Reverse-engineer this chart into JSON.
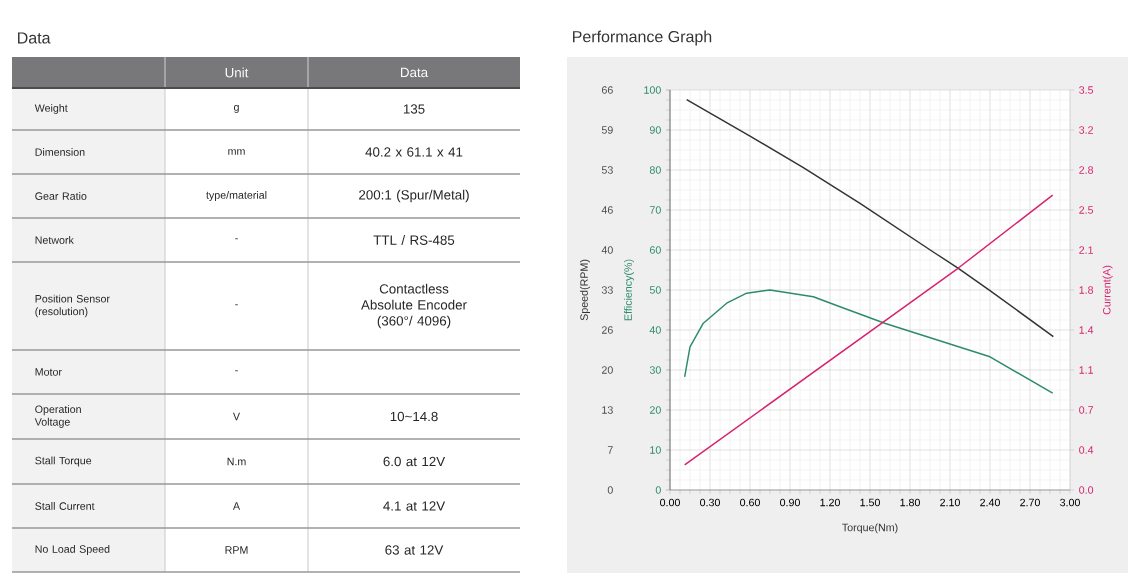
{
  "chart_data": [
    {
      "type": "other",
      "title": "Data",
      "categories": [
        null,
        "Unit",
        "Data"
      ],
      "y_categories": [
        "Weight",
        "Dimension",
        "Gear Ratio",
        "Network",
        "Position Sensor (resolution)",
        "Motor",
        "Operation Voltage",
        "Stall Torque",
        "Stall Current",
        "No Load Speed"
      ],
      "cell_labels": [
        [
          "g",
          "135"
        ],
        [
          "mm",
          "40.2 x 61.1 x 41"
        ],
        [
          "type/material",
          "200:1 (Spur/Metal)"
        ],
        [
          "-",
          "TTL / RS-485"
        ],
        [
          "-",
          "Contactless Absolute Encoder (360°/ 4096)"
        ],
        [
          "-",
          null
        ],
        [
          "V",
          "10~14.8"
        ],
        [
          "N.m",
          "6.0 at 12V"
        ],
        [
          "A",
          "4.1 at 12V"
        ],
        [
          "RPM",
          "63 at 12V"
        ]
      ]
    },
    {
      "type": "line",
      "title": "Performance Graph",
      "xlabel": "Torque(Nm)",
      "ylabel": "Speed(RPM)",
      "y2label": "Current(A)",
      "y3label": "Efficiency(%)",
      "xlim": [
        0,
        3
      ],
      "xticks": [
        {
          "value": 0,
          "label": "0.00"
        },
        {
          "value": 0.3,
          "label": "0.30"
        },
        {
          "value": 0.6,
          "label": "0.60"
        },
        {
          "value": 0.9,
          "label": "0.90"
        },
        {
          "value": 1.2,
          "label": "1.20"
        },
        {
          "value": 1.5,
          "label": "1.50"
        },
        {
          "value": 1.8,
          "label": "1.80"
        },
        {
          "value": 2.1,
          "label": "2.10"
        },
        {
          "value": 2.4,
          "label": "2.40"
        },
        {
          "value": 2.7,
          "label": "2.70"
        },
        {
          "value": 3,
          "label": "3.00"
        }
      ],
      "ylim": [
        0,
        66
      ],
      "yticks": [
        0,
        {
          "value": 6.6,
          "label": "7"
        },
        {
          "value": 13.2,
          "label": "13"
        },
        {
          "value": 19.8,
          "label": "20"
        },
        {
          "value": 26.4,
          "label": "26"
        },
        33,
        {
          "value": 39.6,
          "label": "40"
        },
        {
          "value": 46.2,
          "label": "46"
        },
        {
          "value": 52.8,
          "label": "53"
        },
        {
          "value": 59.4,
          "label": "59"
        },
        66
      ],
      "y2lim": [
        0,
        3.5
      ],
      "y2ticks": [
        {
          "value": 0,
          "label": "0.0"
        },
        {
          "value": 0.35,
          "label": "0.4"
        },
        0.7,
        {
          "value": 1.05,
          "label": "1.1"
        },
        1.4,
        {
          "value": 1.75,
          "label": "1.8"
        },
        2.1,
        {
          "value": 2.45,
          "label": "2.5"
        },
        2.8,
        {
          "value": 3.15,
          "label": "3.2"
        },
        3.5
      ],
      "y3lim": [
        0,
        100
      ],
      "y3ticks": [
        0,
        10,
        20,
        30,
        40,
        50,
        60,
        70,
        80,
        90,
        100
      ],
      "grid": true,
      "series": [
        {
          "color": "#333333",
          "x": [
            0.125,
            0.6,
            1.0,
            1.425,
            2.0,
            2.16,
            2.4,
            2.875
          ],
          "values": [
            64.4,
            58.4,
            53.2,
            47.3,
            38.9,
            36.6,
            32.9,
            25.3
          ]
        },
        {
          "color": "#2e8b6a",
          "axis": "y3",
          "x": [
            0.11,
            0.15,
            0.25,
            0.425,
            0.575,
            0.75,
            1.075,
            1.275,
            1.61,
            2.4,
            2.87
          ],
          "values": [
            28.3,
            35.8,
            41.7,
            46.7,
            49.2,
            50,
            48.3,
            45.8,
            41.7,
            33.3,
            24.2
          ]
        },
        {
          "color": "#d6246e",
          "axis": "y2",
          "x": [
            0.11,
            2.16,
            2.87
          ],
          "values": [
            0.22,
            1.94,
            2.58
          ]
        }
      ]
    }
  ]
}
